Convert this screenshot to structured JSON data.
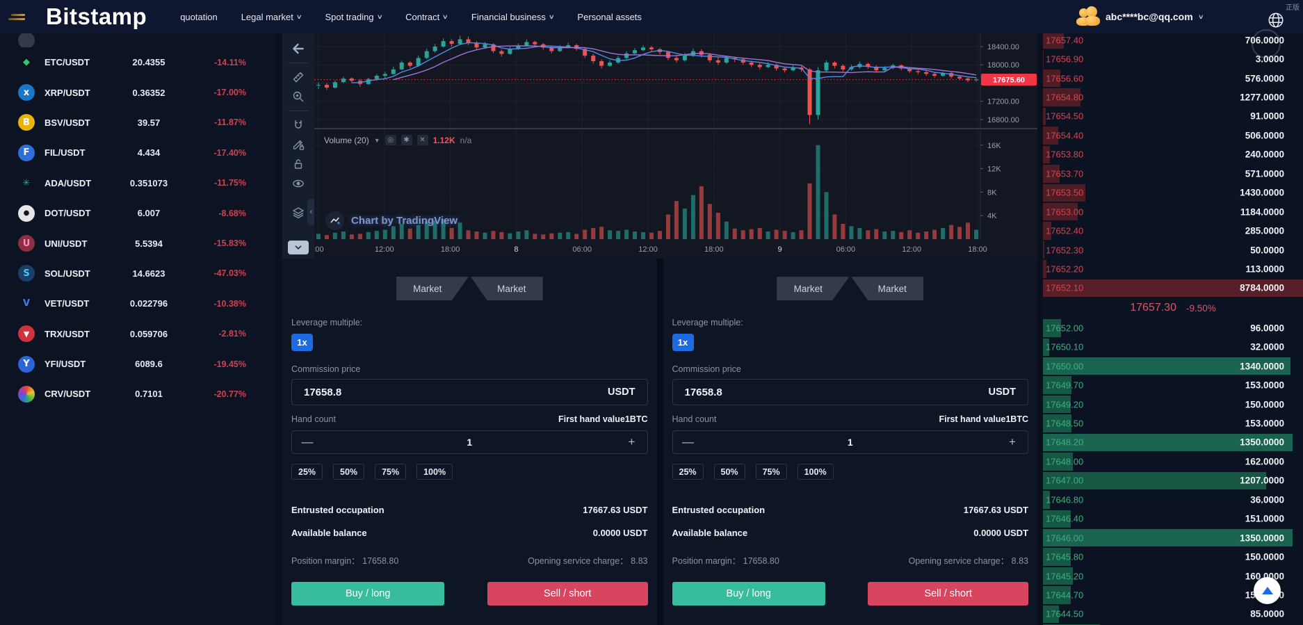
{
  "nav": {
    "logo": "Bitstamp",
    "items": [
      {
        "label": "quotation",
        "caret": false
      },
      {
        "label": "Legal market",
        "caret": true
      },
      {
        "label": "Spot trading",
        "caret": true
      },
      {
        "label": "Contract",
        "caret": true
      },
      {
        "label": "Financial business",
        "caret": true
      },
      {
        "label": "Personal assets",
        "caret": false
      }
    ],
    "user_email": "abc****bc@qq.com",
    "watermark": "正版"
  },
  "pairs": [
    {
      "symbol": "ETC/USDT",
      "price": "20.4355",
      "change": "-14.11%",
      "icon": {
        "bg": "transparent",
        "fg": "#3fc36c",
        "glyph": "◆"
      }
    },
    {
      "symbol": "XRP/USDT",
      "price": "0.36352",
      "change": "-17.00%",
      "icon": {
        "bg": "#1a76c8",
        "fg": "#ffffff",
        "glyph": "x"
      }
    },
    {
      "symbol": "BSV/USDT",
      "price": "39.57",
      "change": "-11.87%",
      "icon": {
        "bg": "#e9b30a",
        "fg": "#ffffff",
        "glyph": "B"
      }
    },
    {
      "symbol": "FIL/USDT",
      "price": "4.434",
      "change": "-17.40%",
      "icon": {
        "bg": "#2f6fdb",
        "fg": "#ffffff",
        "glyph": "F"
      }
    },
    {
      "symbol": "ADA/USDT",
      "price": "0.351073",
      "change": "-11.75%",
      "icon": {
        "bg": "transparent",
        "fg": "#2aa79b",
        "glyph": "✳"
      }
    },
    {
      "symbol": "DOT/USDT",
      "price": "6.007",
      "change": "-8.68%",
      "icon": {
        "bg": "#e6e6e6",
        "fg": "#14141c",
        "glyph": "●"
      }
    },
    {
      "symbol": "UNI/USDT",
      "price": "5.5394",
      "change": "-15.83%",
      "icon": {
        "bg": "#8c2f44",
        "fg": "#ff8fb2",
        "glyph": "U"
      }
    },
    {
      "symbol": "SOL/USDT",
      "price": "14.6623",
      "change": "-47.03%",
      "icon": {
        "bg": "#1b3f66",
        "fg": "#4cc9f0",
        "glyph": "S"
      }
    },
    {
      "symbol": "VET/USDT",
      "price": "0.022796",
      "change": "-10.38%",
      "icon": {
        "bg": "transparent",
        "fg": "#3f7df0",
        "glyph": "V"
      }
    },
    {
      "symbol": "TRX/USDT",
      "price": "0.059706",
      "change": "-2.81%",
      "icon": {
        "bg": "#d0333b",
        "fg": "#ffffff",
        "glyph": "▼"
      }
    },
    {
      "symbol": "YFI/USDT",
      "price": "6089.6",
      "change": "-19.45%",
      "icon": {
        "bg": "#2b66d9",
        "fg": "#ffffff",
        "glyph": "Y"
      }
    },
    {
      "symbol": "CRV/USDT",
      "price": "0.7101",
      "change": "-20.77%",
      "icon": {
        "bg": "conic",
        "fg": "#ffffff",
        "glyph": ""
      }
    }
  ],
  "chart": {
    "toolbar_icons": [
      "back-arrow",
      "ruler",
      "zoom-in",
      "magnet",
      "draw-lock",
      "lock",
      "eye",
      "layers"
    ],
    "volume_legend": {
      "label": "Volume (20)",
      "value": "1.12K",
      "extra": "n/a"
    },
    "attribution": "Chart by TradingView",
    "price_tag": "17675.60",
    "chart_data": {
      "type": "candlestick",
      "price_axis_labels": [
        "18400.00",
        "18000.00",
        "17200.00",
        "16800.00"
      ],
      "price_axis_values": [
        18400,
        18000,
        17200,
        16800
      ],
      "grid_prices": [
        18400,
        18000,
        17600,
        17200,
        16800
      ],
      "volume_axis_labels": [
        "16K",
        "12K",
        "8K",
        "4K"
      ],
      "volume_axis_values": [
        16000,
        12000,
        8000,
        4000
      ],
      "time_axis": [
        ":00",
        "12:00",
        "18:00",
        "8",
        "06:00",
        "12:00",
        "18:00",
        "9",
        "06:00",
        "12:00",
        "18:00"
      ],
      "day_label_indexes": [
        3,
        7
      ],
      "last_price": 17675.6,
      "visible_price_range": [
        16700,
        18690
      ],
      "up_color": "#26a69a",
      "down_color": "#ef5350",
      "ma_periods": [
        5,
        10
      ],
      "ma_colors": [
        "#4f8de8",
        "#a173d9"
      ],
      "last_price_color": "#f23645",
      "candles": [
        [
          17550,
          17620,
          17470,
          17560,
          900
        ],
        [
          17560,
          17600,
          17450,
          17500,
          700
        ],
        [
          17500,
          17660,
          17480,
          17620,
          1100
        ],
        [
          17620,
          17740,
          17600,
          17700,
          1300
        ],
        [
          17700,
          17730,
          17600,
          17650,
          800
        ],
        [
          17650,
          17690,
          17520,
          17580,
          900
        ],
        [
          17580,
          17720,
          17560,
          17690,
          1200
        ],
        [
          17690,
          17800,
          17650,
          17760,
          1400
        ],
        [
          17760,
          17850,
          17700,
          17800,
          1600
        ],
        [
          17800,
          17960,
          17780,
          17900,
          2200
        ],
        [
          17900,
          18090,
          17880,
          18050,
          2600
        ],
        [
          18050,
          18080,
          17930,
          17980,
          1800
        ],
        [
          17980,
          18200,
          17950,
          18150,
          2400
        ],
        [
          18150,
          18350,
          18120,
          18300,
          3000
        ],
        [
          18300,
          18460,
          18260,
          18400,
          3200
        ],
        [
          18400,
          18580,
          18380,
          18520,
          3400
        ],
        [
          18520,
          18560,
          18400,
          18460,
          1900
        ],
        [
          18460,
          18640,
          18440,
          18560,
          2800
        ],
        [
          18560,
          18620,
          18430,
          18480,
          1500
        ],
        [
          18480,
          18520,
          18330,
          18380,
          1300
        ],
        [
          18380,
          18500,
          18350,
          18450,
          1100
        ],
        [
          18450,
          18470,
          18260,
          18300,
          1400
        ],
        [
          18300,
          18340,
          18180,
          18240,
          1200
        ],
        [
          18240,
          18400,
          18220,
          18350,
          1000
        ],
        [
          18350,
          18470,
          18330,
          18420,
          1300
        ],
        [
          18420,
          18560,
          18400,
          18500,
          1500
        ],
        [
          18500,
          18530,
          18400,
          18450,
          900
        ],
        [
          18450,
          18480,
          18330,
          18380,
          800
        ],
        [
          18380,
          18420,
          18250,
          18300,
          1000
        ],
        [
          18300,
          18430,
          18280,
          18380,
          1100
        ],
        [
          18380,
          18490,
          18360,
          18430,
          1200
        ],
        [
          18430,
          18460,
          18310,
          18350,
          900
        ],
        [
          18350,
          18380,
          18150,
          18200,
          1600
        ],
        [
          18200,
          18240,
          18030,
          18080,
          1900
        ],
        [
          18080,
          18120,
          17920,
          17980,
          2100
        ],
        [
          17980,
          18100,
          17950,
          18050,
          1500
        ],
        [
          18050,
          18200,
          18020,
          18150,
          1400
        ],
        [
          18150,
          18300,
          18120,
          18250,
          1600
        ],
        [
          18250,
          18370,
          18220,
          18320,
          1300
        ],
        [
          18320,
          18430,
          18300,
          18380,
          1200
        ],
        [
          18380,
          18410,
          18290,
          18340,
          1100
        ],
        [
          18340,
          18370,
          18230,
          18280,
          1400
        ],
        [
          18280,
          18310,
          18100,
          18150,
          4200
        ],
        [
          18150,
          18220,
          18050,
          18100,
          6500
        ],
        [
          18100,
          18260,
          18070,
          18200,
          5200
        ],
        [
          18200,
          18360,
          18170,
          18300,
          7500
        ],
        [
          18300,
          18340,
          18160,
          18220,
          9000
        ],
        [
          18220,
          18260,
          18050,
          18100,
          6000
        ],
        [
          18100,
          18180,
          18000,
          18050,
          4500
        ],
        [
          18050,
          18200,
          18020,
          18150,
          3000
        ],
        [
          18150,
          18170,
          18060,
          18120,
          1800
        ],
        [
          18120,
          18160,
          18000,
          18050,
          1500
        ],
        [
          18050,
          18090,
          17950,
          18000,
          1700
        ],
        [
          18000,
          18040,
          17900,
          17950,
          1900
        ],
        [
          17950,
          18060,
          17930,
          18000,
          1300
        ],
        [
          18000,
          18030,
          17870,
          17920,
          1600
        ],
        [
          17920,
          17960,
          17830,
          17880,
          1400
        ],
        [
          17880,
          17990,
          17860,
          17940,
          1200
        ],
        [
          17940,
          17970,
          17850,
          17900,
          1500
        ],
        [
          17900,
          17930,
          16700,
          16900,
          9500
        ],
        [
          16900,
          17950,
          16800,
          17880,
          16000
        ],
        [
          17880,
          18100,
          17830,
          18050,
          8000
        ],
        [
          18050,
          18080,
          17920,
          17980,
          4200
        ],
        [
          17980,
          18010,
          17850,
          17900,
          2600
        ],
        [
          17900,
          18000,
          17870,
          17950,
          2200
        ],
        [
          17950,
          18070,
          17920,
          18020,
          1900
        ],
        [
          18020,
          18050,
          17910,
          17960,
          1500
        ],
        [
          17960,
          17990,
          17840,
          17880,
          1700
        ],
        [
          17880,
          17970,
          17850,
          17930,
          1300
        ],
        [
          17930,
          18020,
          17900,
          17990,
          1400
        ],
        [
          17990,
          18010,
          17880,
          17920,
          1200
        ],
        [
          17920,
          17950,
          17820,
          17860,
          1500
        ],
        [
          17860,
          17900,
          17790,
          17840,
          1100
        ],
        [
          17840,
          17870,
          17760,
          17800,
          1300
        ],
        [
          17800,
          17830,
          17720,
          17760,
          1600
        ],
        [
          17760,
          17850,
          17740,
          17820,
          1900
        ],
        [
          17820,
          17840,
          17700,
          17740,
          2400
        ],
        [
          17740,
          17770,
          17660,
          17700,
          2100
        ],
        [
          17700,
          17740,
          17620,
          17660,
          2800
        ],
        [
          17660,
          17720,
          17630,
          17675.6,
          1600
        ]
      ]
    }
  },
  "order_panel": {
    "tabs": [
      "Market",
      "Market"
    ],
    "leverage_label": "Leverage multiple:",
    "leverage_value": "1x",
    "commission_label": "Commission price",
    "commission_value": "17658.8",
    "commission_unit": "USDT",
    "hand_count_label": "Hand count",
    "first_hand_label": "First hand value1BTC",
    "hand_count_value": "1",
    "minus": "—",
    "plus": "+",
    "percents": [
      "25%",
      "50%",
      "75%",
      "100%"
    ],
    "entrusted_label": "Entrusted occupation",
    "entrusted_value": "17667.63 USDT",
    "balance_label": "Available balance",
    "balance_value": "0.0000 USDT",
    "margin_label": "Position margin：",
    "margin_value": "17658.80",
    "charge_label": "Opening service charge：",
    "charge_value": "8.83",
    "buy_label": "Buy / long",
    "sell_label": "Sell / short"
  },
  "order_book": {
    "asks": [
      [
        "17657.40",
        "706.0000"
      ],
      [
        "17656.90",
        "3.0000"
      ],
      [
        "17656.60",
        "576.0000"
      ],
      [
        "17654.80",
        "1277.0000"
      ],
      [
        "17654.50",
        "91.0000"
      ],
      [
        "17654.40",
        "506.0000"
      ],
      [
        "17653.80",
        "240.0000"
      ],
      [
        "17653.70",
        "571.0000"
      ],
      [
        "17653.50",
        "1430.0000"
      ],
      [
        "17653.00",
        "1184.0000"
      ],
      [
        "17652.40",
        "285.0000"
      ],
      [
        "17652.30",
        "50.0000"
      ],
      [
        "17652.20",
        "113.0000"
      ],
      [
        "17652.10",
        "8784.0000"
      ]
    ],
    "mid_price": "17657.30",
    "mid_change": "-9.50%",
    "bids": [
      [
        "17652.00",
        "96.0000"
      ],
      [
        "17650.10",
        "32.0000"
      ],
      [
        "17650.00",
        "1340.0000"
      ],
      [
        "17649.70",
        "153.0000"
      ],
      [
        "17649.20",
        "150.0000"
      ],
      [
        "17648.50",
        "153.0000"
      ],
      [
        "17648.20",
        "1350.0000"
      ],
      [
        "17648.00",
        "162.0000"
      ],
      [
        "17647.00",
        "1207.0000"
      ],
      [
        "17646.80",
        "36.0000"
      ],
      [
        "17646.40",
        "151.0000"
      ],
      [
        "17646.00",
        "1350.0000"
      ],
      [
        "17645.80",
        "150.0000"
      ],
      [
        "17645.20",
        "160.0000"
      ],
      [
        "17644.70",
        "150.0000"
      ],
      [
        "17644.50",
        "85.0000"
      ],
      [
        "",
        ""
      ]
    ]
  }
}
